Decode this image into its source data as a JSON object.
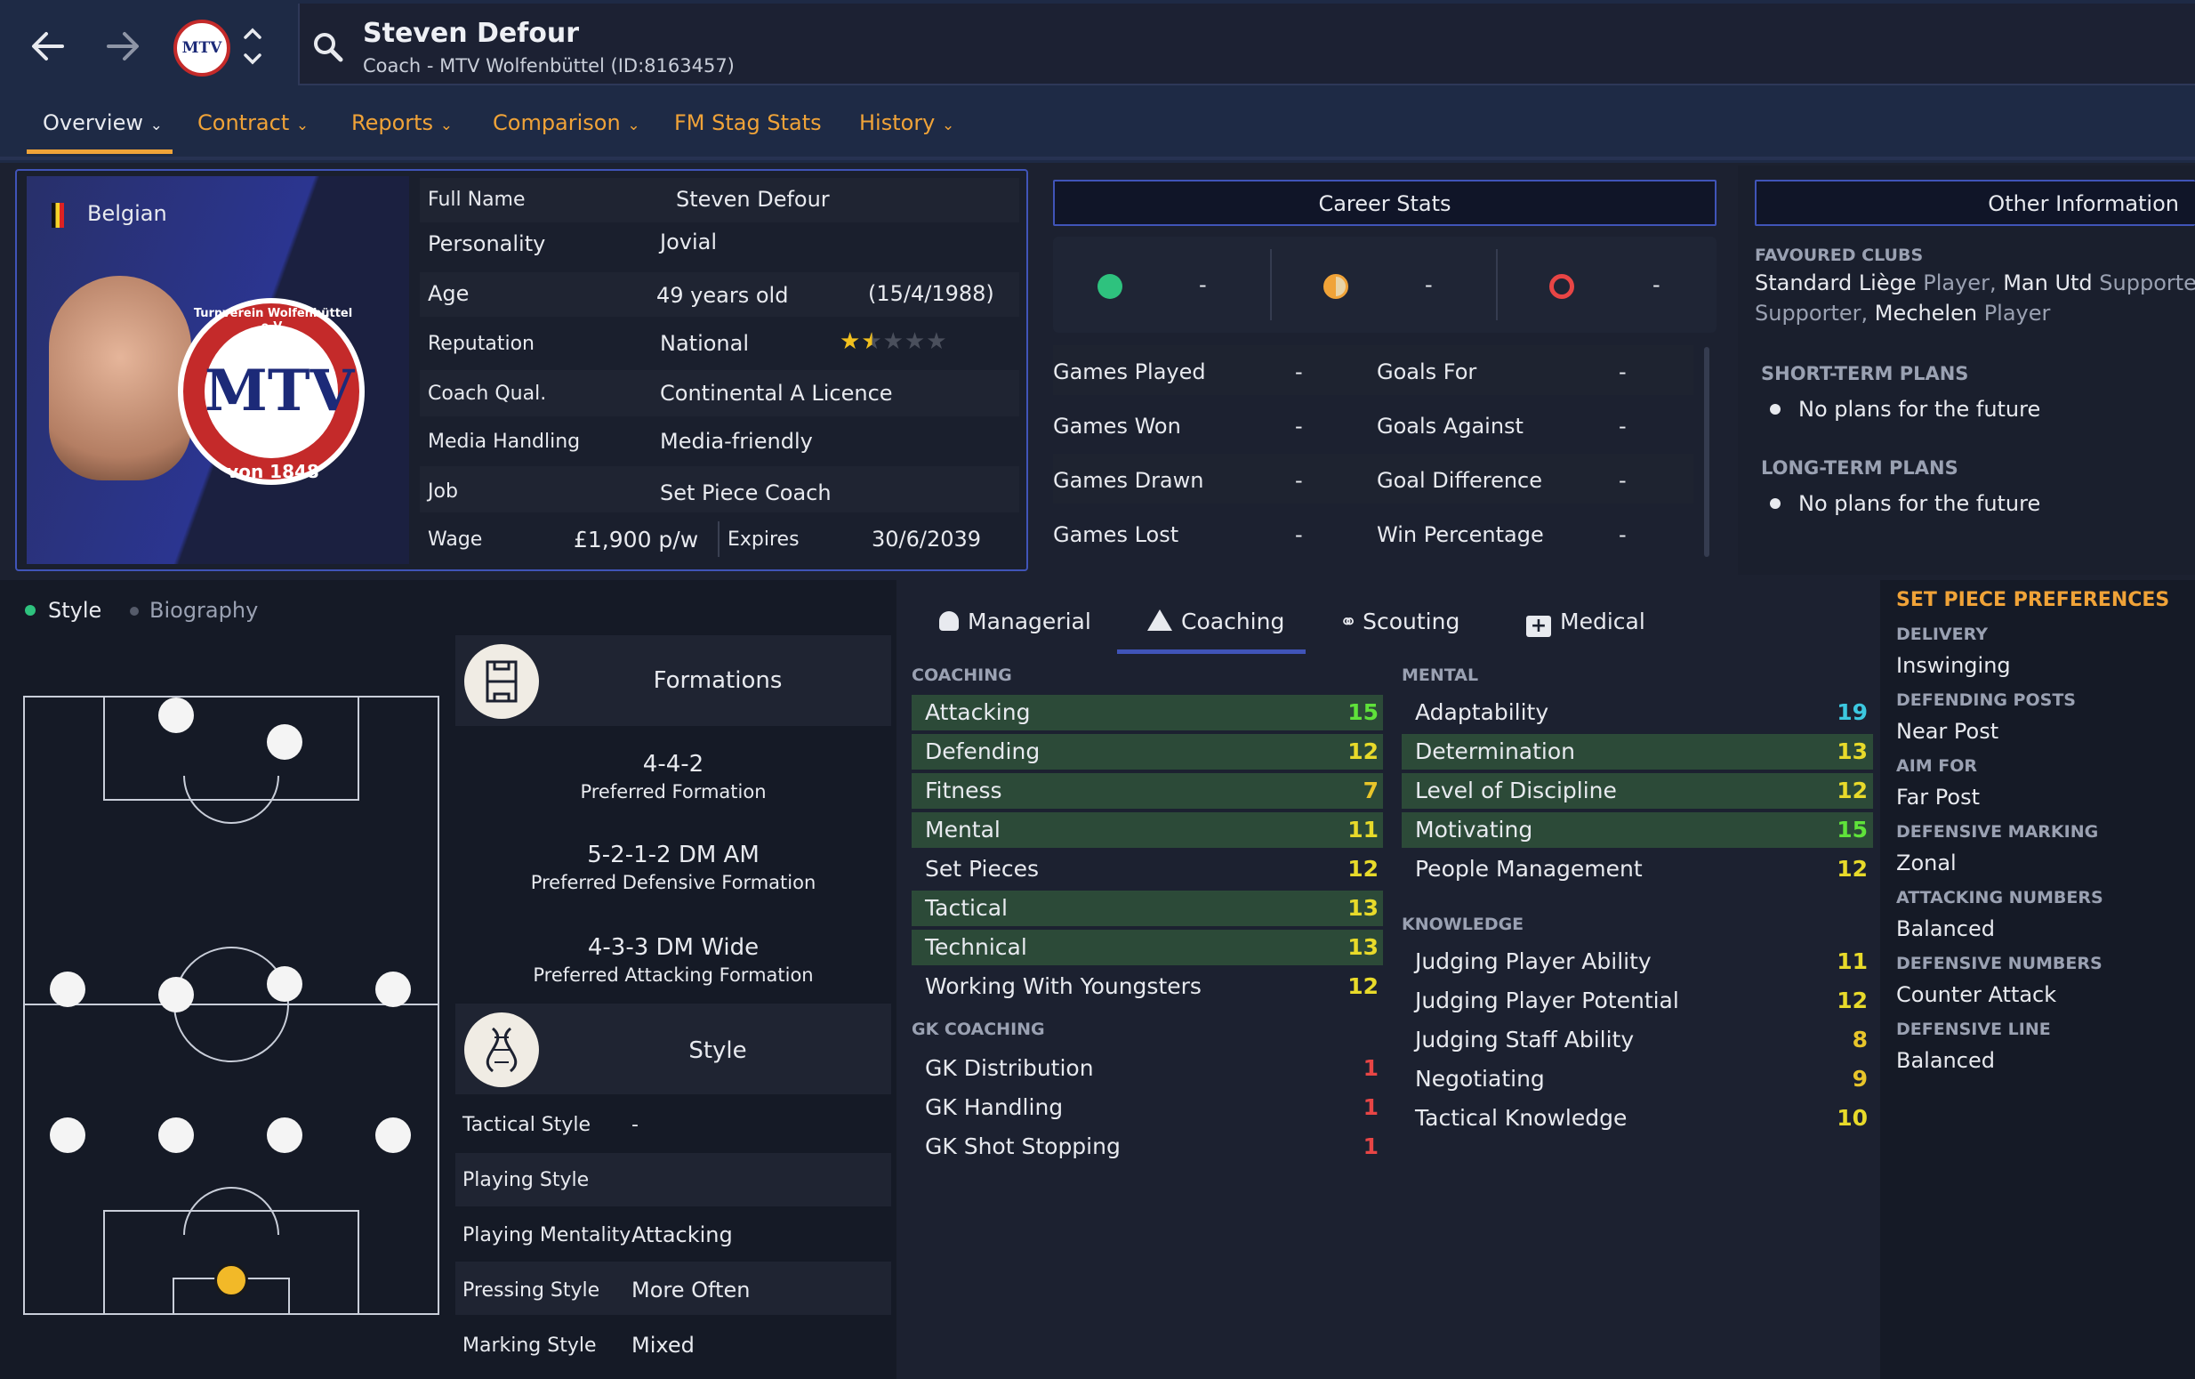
{
  "header": {
    "name": "Steven Defour",
    "subtitle": "Coach - MTV Wolfenbüttel (ID:8163457)",
    "back_icon": "arrow-left-icon",
    "forward_icon": "arrow-right-icon",
    "search_icon": "search-icon",
    "club_logo": "MTV"
  },
  "tabs": [
    {
      "label": "Overview"
    },
    {
      "label": "Contract"
    },
    {
      "label": "Reports"
    },
    {
      "label": "Comparison"
    },
    {
      "label": "FM Stag Stats"
    },
    {
      "label": "History"
    }
  ],
  "profile": {
    "nationality": "Belgian",
    "badge_text": "MTV",
    "badge_top": "Turnverein Wolfenbüttel e.V.",
    "badge_bottom": "von 1848",
    "full_name_label": "Full Name",
    "full_name": "Steven Defour",
    "personality_label": "Personality",
    "personality": "Jovial",
    "age_label": "Age",
    "age": "49 years old",
    "dob": "(15/4/1988)",
    "reputation_label": "Reputation",
    "reputation": "National",
    "reputation_stars": 1.5,
    "coach_qual_label": "Coach Qual.",
    "coach_qual": "Continental A Licence",
    "media_label": "Media Handling",
    "media": "Media-friendly",
    "job_label": "Job",
    "job": "Set Piece Coach",
    "wage_label": "Wage",
    "wage": "£1,900 p/w",
    "expires_label": "Expires",
    "expires": "30/6/2039"
  },
  "career": {
    "button": "Career Stats",
    "dash": "-",
    "rows": [
      {
        "left": "Games Played",
        "lv": "-",
        "right": "Goals For",
        "rv": "-"
      },
      {
        "left": "Games Won",
        "lv": "-",
        "right": "Goals Against",
        "rv": "-"
      },
      {
        "left": "Games Drawn",
        "lv": "-",
        "right": "Goal Difference",
        "rv": "-"
      },
      {
        "left": "Games Lost",
        "lv": "-",
        "right": "Win Percentage",
        "rv": "-"
      }
    ]
  },
  "other": {
    "button": "Other Information",
    "fav_caption": "FAVOURED CLUBS",
    "fav_line1_a": "Standard Liège",
    "fav_line1_b": " Player, ",
    "fav_line1_c": "Man Utd",
    "fav_line1_d": " Supporter, ",
    "fav_line2_a": "Supporter",
    "fav_line2_b": ", ",
    "fav_line2_c": "Mechelen",
    "fav_line2_d": " Player",
    "short_caption": "SHORT-TERM PLANS",
    "short_text": "No plans for the future",
    "long_caption": "LONG-TERM PLANS",
    "long_text": "No plans for the future"
  },
  "style_tabs": {
    "style": "Style",
    "biography": "Biography"
  },
  "formations": {
    "title": "Formations",
    "items": [
      {
        "value": "4-4-2",
        "label": "Preferred Formation"
      },
      {
        "value": "5-2-1-2 DM AM",
        "label": "Preferred Defensive Formation"
      },
      {
        "value": "4-3-3 DM Wide",
        "label": "Preferred Attacking Formation"
      }
    ]
  },
  "style": {
    "title": "Style",
    "rows": [
      {
        "label": "Tactical Style",
        "value": "-"
      },
      {
        "label": "Playing Style",
        "value": ""
      },
      {
        "label": "Playing Mentality",
        "value": "Attacking"
      },
      {
        "label": "Pressing Style",
        "value": "More Often"
      },
      {
        "label": "Marking Style",
        "value": "Mixed"
      }
    ]
  },
  "attr_tabs": [
    {
      "label": "Managerial",
      "icon": "person-icon"
    },
    {
      "label": "Coaching",
      "icon": "whistle-icon"
    },
    {
      "label": "Scouting",
      "icon": "binoculars-icon"
    },
    {
      "label": "Medical",
      "icon": "medical-kit-icon"
    }
  ],
  "coaching": {
    "caption": "COACHING",
    "rows": [
      {
        "label": "Attacking",
        "value": "15"
      },
      {
        "label": "Defending",
        "value": "12"
      },
      {
        "label": "Fitness",
        "value": "7"
      },
      {
        "label": "Mental",
        "value": "11"
      },
      {
        "label": "Set Pieces",
        "value": "12"
      },
      {
        "label": "Tactical",
        "value": "13"
      },
      {
        "label": "Technical",
        "value": "13"
      },
      {
        "label": "Working With Youngsters",
        "value": "12"
      }
    ]
  },
  "gk": {
    "caption": "GK COACHING",
    "rows": [
      {
        "label": "GK Distribution",
        "value": "1"
      },
      {
        "label": "GK Handling",
        "value": "1"
      },
      {
        "label": "GK Shot Stopping",
        "value": "1"
      }
    ]
  },
  "mental": {
    "caption": "MENTAL",
    "rows": [
      {
        "label": "Adaptability",
        "value": "19"
      },
      {
        "label": "Determination",
        "value": "13"
      },
      {
        "label": "Level of Discipline",
        "value": "12"
      },
      {
        "label": "Motivating",
        "value": "15"
      },
      {
        "label": "People Management",
        "value": "12"
      }
    ]
  },
  "knowledge": {
    "caption": "KNOWLEDGE",
    "rows": [
      {
        "label": "Judging Player Ability",
        "value": "11"
      },
      {
        "label": "Judging Player Potential",
        "value": "12"
      },
      {
        "label": "Judging Staff Ability",
        "value": "8"
      },
      {
        "label": "Negotiating",
        "value": "9"
      },
      {
        "label": "Tactical Knowledge",
        "value": "10"
      }
    ]
  },
  "set_pieces": {
    "title": "SET PIECE PREFERENCES",
    "items": [
      {
        "caption": "DELIVERY",
        "value": "Inswinging"
      },
      {
        "caption": "DEFENDING POSTS",
        "value": "Near Post"
      },
      {
        "caption": "AIM FOR",
        "value": "Far Post"
      },
      {
        "caption": "DEFENSIVE MARKING",
        "value": "Zonal"
      },
      {
        "caption": "ATTACKING NUMBERS",
        "value": "Balanced"
      },
      {
        "caption": "DEFENSIVE NUMBERS",
        "value": "Counter Attack"
      },
      {
        "caption": "DEFENSIVE LINE",
        "value": "Balanced"
      }
    ]
  },
  "colors": {
    "accent": "#f0a338",
    "highlight_green": "#5fe23a",
    "value_yellow": "#e8da2a",
    "value_red": "#e84545",
    "value_teal": "#3cc8e0",
    "border_blue": "#4054b8"
  }
}
